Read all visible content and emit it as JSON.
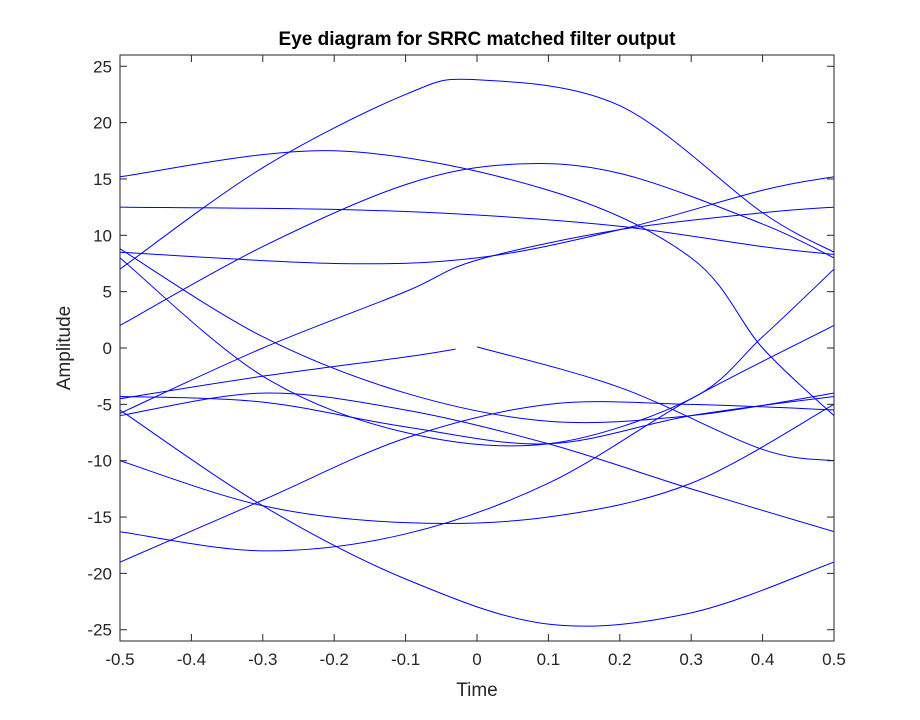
{
  "chart_data": {
    "type": "line",
    "title": "Eye diagram for SRRC matched filter output",
    "xlabel": "Time",
    "ylabel": "Amplitude",
    "xlim": [
      -0.5,
      0.5
    ],
    "ylim": [
      -26,
      26
    ],
    "xticks": [
      -0.5,
      -0.4,
      -0.3,
      -0.2,
      -0.1,
      0,
      0.1,
      0.2,
      0.3,
      0.4,
      0.5
    ],
    "xtick_labels": [
      "-0.5",
      "-0.4",
      "-0.3",
      "-0.2",
      "-0.1",
      "0",
      "0.1",
      "0.2",
      "0.3",
      "0.4",
      "0.5"
    ],
    "yticks": [
      -25,
      -20,
      -15,
      -10,
      -5,
      0,
      5,
      10,
      15,
      20,
      25
    ],
    "ytick_labels": [
      "-25",
      "-20",
      "-15",
      "-10",
      "-5",
      "0",
      "5",
      "10",
      "15",
      "20",
      "25"
    ],
    "grid": false,
    "line_color": "#0000ff",
    "series": [
      {
        "x": [
          -0.5,
          -0.3,
          -0.1,
          0.0,
          0.2,
          0.4,
          0.5
        ],
        "y": [
          7,
          16,
          22.5,
          23.8,
          21.5,
          12,
          8.5
        ]
      },
      {
        "x": [
          -0.5,
          -0.2,
          0.1,
          0.3,
          0.4,
          0.5
        ],
        "y": [
          15.2,
          17.5,
          14,
          8,
          0,
          -6
        ]
      },
      {
        "x": [
          -0.5,
          -0.3,
          -0.1,
          0.05,
          0.2,
          0.4,
          0.5
        ],
        "y": [
          2,
          9,
          14.5,
          16.3,
          15.5,
          11,
          8
        ]
      },
      {
        "x": [
          -0.5,
          -0.2,
          0.0,
          0.2,
          0.4,
          0.5
        ],
        "y": [
          12.5,
          12.3,
          11.8,
          10.8,
          9,
          8.3
        ]
      },
      {
        "x": [
          -0.5,
          -0.2,
          0.0,
          0.2,
          0.4,
          0.5
        ],
        "y": [
          8.5,
          7.5,
          8,
          10.5,
          14,
          15.2
        ]
      },
      {
        "x": [
          -0.5,
          -0.3,
          -0.1,
          0.0,
          0.2,
          0.4,
          0.5
        ],
        "y": [
          -5.8,
          0,
          5,
          7.8,
          10.5,
          12,
          12.5
        ]
      },
      {
        "x": [
          -0.5,
          -0.3,
          -0.1,
          0.1,
          0.3,
          0.5
        ],
        "y": [
          8.8,
          1,
          -4,
          -6.5,
          -6,
          -4
        ]
      },
      {
        "x": [
          -0.5,
          -0.3,
          -0.1,
          0.1,
          0.3,
          0.4,
          0.5
        ],
        "y": [
          8,
          -2.5,
          -7.5,
          -8.5,
          -4.5,
          1,
          7
        ]
      },
      {
        "x": [
          -0.5,
          -0.3,
          -0.1,
          -0.03
        ],
        "y": [
          -4.5,
          -2.5,
          -0.8,
          -0.1
        ]
      },
      {
        "x": [
          0.0,
          0.2,
          0.4,
          0.5
        ],
        "y": [
          0.1,
          -3.5,
          -9,
          -10
        ]
      },
      {
        "x": [
          -0.5,
          -0.3,
          -0.1,
          0.1,
          0.3,
          0.5
        ],
        "y": [
          -4.3,
          -4.8,
          -7,
          -8.5,
          -6,
          -4.3
        ]
      },
      {
        "x": [
          -0.5,
          -0.3,
          -0.1,
          0.1,
          0.3,
          0.5
        ],
        "y": [
          -5.5,
          -14,
          -20.5,
          -24.5,
          -23.5,
          -19
        ]
      },
      {
        "x": [
          -0.5,
          -0.3,
          -0.1,
          0.1,
          0.3,
          0.5
        ],
        "y": [
          -10,
          -14,
          -15.5,
          -15,
          -12,
          -5
        ]
      },
      {
        "x": [
          -0.5,
          -0.3,
          -0.1,
          0.1,
          0.3,
          0.5
        ],
        "y": [
          -16.3,
          -18,
          -16.5,
          -12,
          -4.5,
          2
        ]
      },
      {
        "x": [
          -0.5,
          -0.3,
          -0.1,
          0.1,
          0.3,
          0.5
        ],
        "y": [
          -19,
          -13.5,
          -8,
          -5,
          -5,
          -5.5
        ]
      },
      {
        "x": [
          -0.5,
          -0.3,
          -0.1,
          0.1,
          0.3,
          0.5
        ],
        "y": [
          -6,
          -4,
          -5.5,
          -8.5,
          -12.5,
          -16.3
        ]
      }
    ]
  }
}
